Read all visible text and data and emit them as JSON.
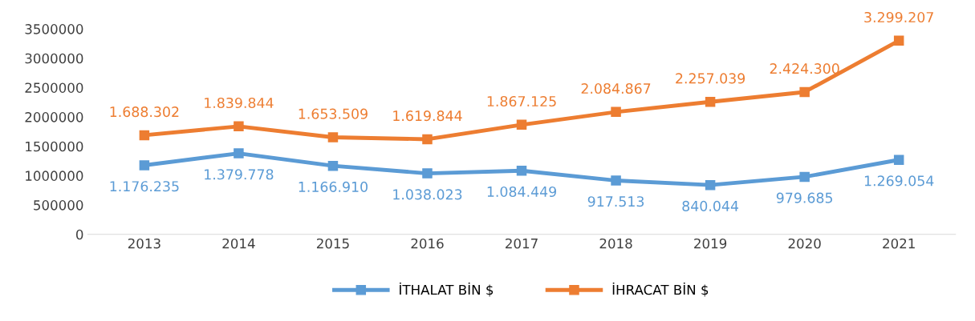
{
  "chart_data": {
    "type": "line",
    "categories": [
      "2013",
      "2014",
      "2015",
      "2016",
      "2017",
      "2018",
      "2019",
      "2020",
      "2021"
    ],
    "series": [
      {
        "name": "İTHALAT BİN $",
        "color": "#5b9bd5",
        "values": [
          1176235,
          1379778,
          1166910,
          1038023,
          1084449,
          917513,
          840044,
          979685,
          1269054
        ],
        "value_labels": [
          "1.176.235",
          "1.379.778",
          "1.166.910",
          "1.038.023",
          "1.084.449",
          "917.513",
          "840.044",
          "979.685",
          "1.269.054"
        ]
      },
      {
        "name": "İHRACAT BİN $",
        "color": "#ed7d31",
        "values": [
          1688302,
          1839844,
          1653509,
          1619844,
          1867125,
          2084867,
          2257039,
          2424300,
          3299207
        ],
        "value_labels": [
          "1.688.302",
          "1.839.844",
          "1.653.509",
          "1.619.844",
          "1.867.125",
          "2.084.867",
          "2.257.039",
          "2.424.300",
          "3.299.207"
        ]
      }
    ],
    "ylim": [
      0,
      3500000
    ],
    "yticks": [
      0,
      500000,
      1000000,
      1500000,
      2000000,
      2500000,
      3000000,
      3500000
    ],
    "grid": false,
    "legend": "bottom",
    "marker": "square",
    "line_style": "solid"
  }
}
